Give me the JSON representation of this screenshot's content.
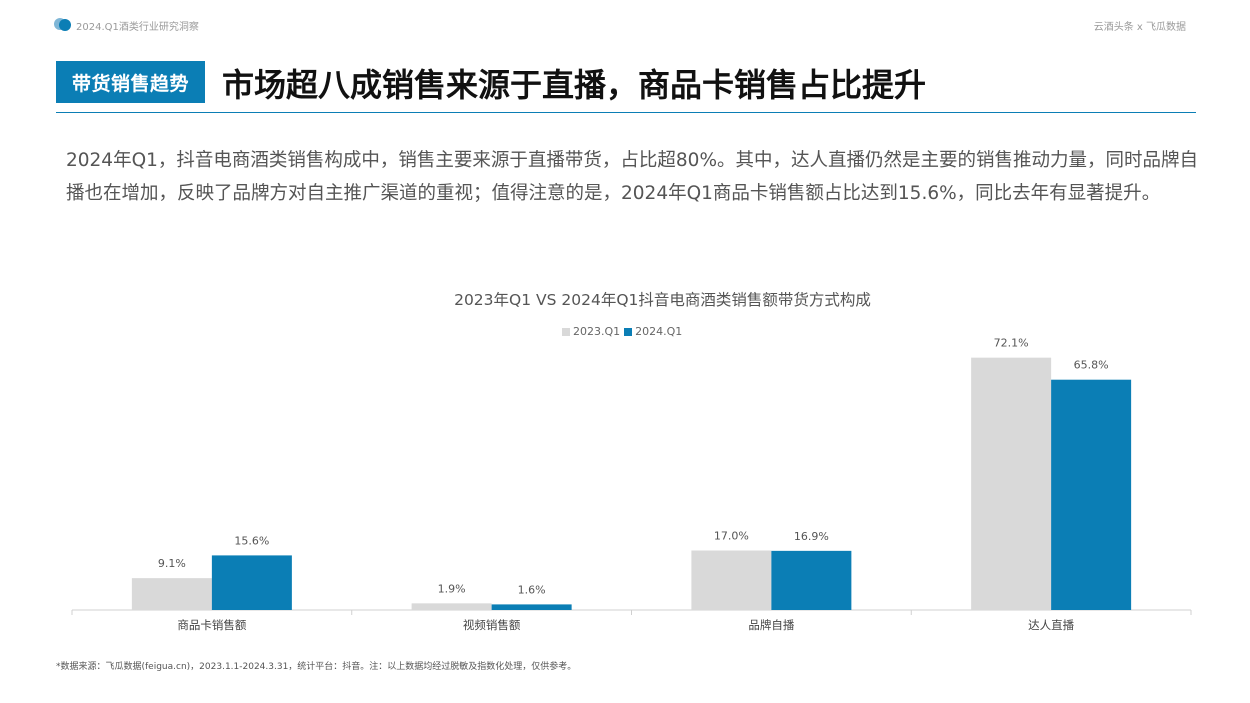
{
  "header": {
    "left_text": "2024.Q1酒类行业研究洞察",
    "right_text": "云酒头条 x 飞瓜数据"
  },
  "section_tag": "带货销售趋势",
  "title": "市场超八成销售来源于直播，商品卡销售占比提升",
  "description": "2024年Q1，抖音电商酒类销售构成中，销售主要来源于直播带货，占比超80%。其中，达人直播仍然是主要的销售推动力量，同时品牌自播也在增加，反映了品牌方对自主推广渠道的重视；值得注意的是，2024年Q1商品卡销售额占比达到15.6%，同比去年有显著提升。",
  "footnote": "*数据来源：飞瓜数据(feigua.cn)，2023.1.1-2024.3.31，统计平台：抖音。注：以上数据均经过脱敏及指数化处理，仅供参考。",
  "colors": {
    "accent": "#0b7eb5",
    "series_2023": "#d9d9d9",
    "series_2024": "#0b7eb5"
  },
  "chart_data": {
    "type": "bar",
    "title": "2023年Q1 VS 2024年Q1抖音电商酒类销售额带货方式构成",
    "categories": [
      "商品卡销售额",
      "视频销售额",
      "品牌自播",
      "达人直播"
    ],
    "series": [
      {
        "name": "2023.Q1",
        "values": [
          9.1,
          1.9,
          17.0,
          72.1
        ],
        "labels": [
          "9.1%",
          "1.9%",
          "17.0%",
          "72.1%"
        ]
      },
      {
        "name": "2024.Q1",
        "values": [
          15.6,
          1.6,
          16.9,
          65.8
        ],
        "labels": [
          "15.6%",
          "1.6%",
          "16.9%",
          "65.8%"
        ]
      }
    ],
    "ylim": [
      0,
      80
    ],
    "grid": false,
    "legend_position": "top-center"
  }
}
